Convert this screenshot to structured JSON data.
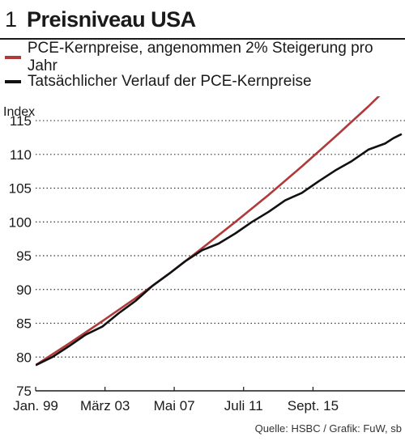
{
  "figure": {
    "number": "1",
    "title": "Preisniveau USA",
    "source": "Quelle: HSBC / Grafik: FuW, sb"
  },
  "colors": {
    "trend": "#b03a3a",
    "actual": "#111111",
    "grid": "#333333",
    "axis": "#1a1a1a"
  },
  "chart_data": {
    "type": "line",
    "title": "Preisniveau USA",
    "ylabel": "Index",
    "xlabel": "",
    "ylim": [
      75,
      118
    ],
    "xlim": [
      1999.0,
      2021.2
    ],
    "yticks": [
      75,
      80,
      85,
      90,
      95,
      100,
      105,
      110,
      115
    ],
    "xticks": [
      {
        "label": "Jan. 99",
        "x": 1999.0
      },
      {
        "label": "März 03",
        "x": 2003.17
      },
      {
        "label": "Mai 07",
        "x": 2007.33
      },
      {
        "label": "Juli 11",
        "x": 2011.5
      },
      {
        "label": "Sept. 15",
        "x": 2015.67
      }
    ],
    "grid": "horizontal dotted",
    "legend_position": "top-left",
    "series": [
      {
        "name": "PCE-Kernpreise, angenommen 2% Steigerung pro Jahr",
        "color": "#b03a3a",
        "x": [
          1999.0,
          2001.0,
          2003.0,
          2005.0,
          2007.0,
          2009.0,
          2011.0,
          2013.0,
          2015.0,
          2017.0,
          2019.0,
          2021.0
        ],
        "y": [
          78.8,
          82.0,
          85.3,
          88.7,
          92.3,
          96.1,
          100.0,
          104.0,
          108.2,
          112.6,
          117.1,
          121.9
        ]
      },
      {
        "name": "Tatsächlicher Verlauf der  PCE-Kernpreise",
        "color": "#111111",
        "x": [
          1999.0,
          2000.0,
          2001.0,
          2002.0,
          2003.0,
          2004.0,
          2005.0,
          2006.0,
          2007.0,
          2008.0,
          2009.0,
          2010.0,
          2011.0,
          2012.0,
          2013.0,
          2014.0,
          2015.0,
          2016.0,
          2017.0,
          2018.0,
          2019.0,
          2020.0,
          2020.5,
          2021.0
        ],
        "y": [
          78.8,
          80.0,
          81.6,
          83.3,
          84.5,
          86.5,
          88.3,
          90.5,
          92.3,
          94.2,
          95.8,
          96.8,
          98.3,
          100.0,
          101.5,
          103.2,
          104.3,
          106.0,
          107.6,
          109.0,
          110.7,
          111.6,
          112.4,
          113.0
        ]
      }
    ]
  }
}
